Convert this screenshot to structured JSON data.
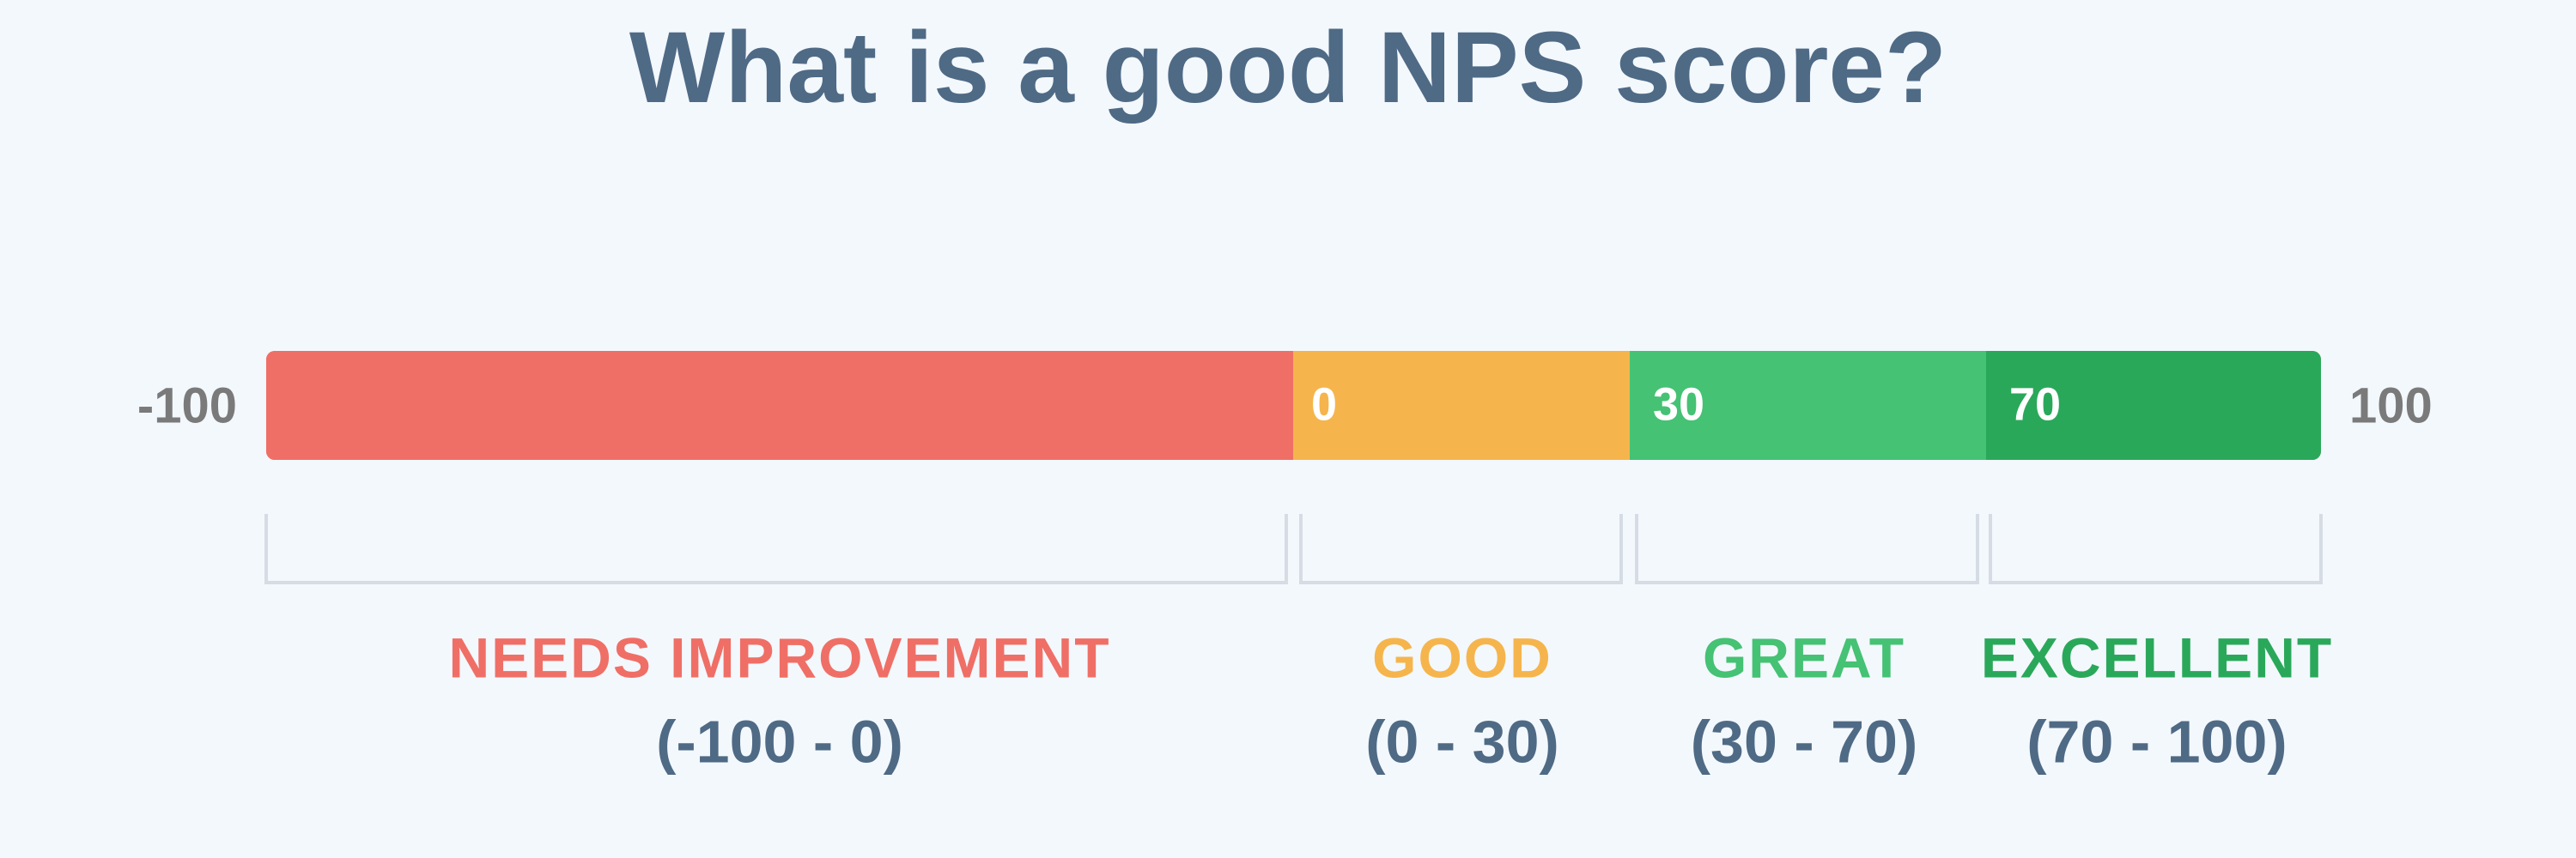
{
  "title": "What is a good NPS score?",
  "scale": {
    "min": -100,
    "max": 100
  },
  "segments": [
    {
      "name": "NEEDS IMPROVEMENT",
      "range": "(-100 - 0)"
    },
    {
      "start": 0,
      "name": "GOOD",
      "range": "(0 - 30)"
    },
    {
      "start": 30,
      "name": "GREAT",
      "range": "(30 - 70)"
    },
    {
      "start": 70,
      "name": "EXCELLENT",
      "range": "(70 - 100)"
    }
  ]
}
